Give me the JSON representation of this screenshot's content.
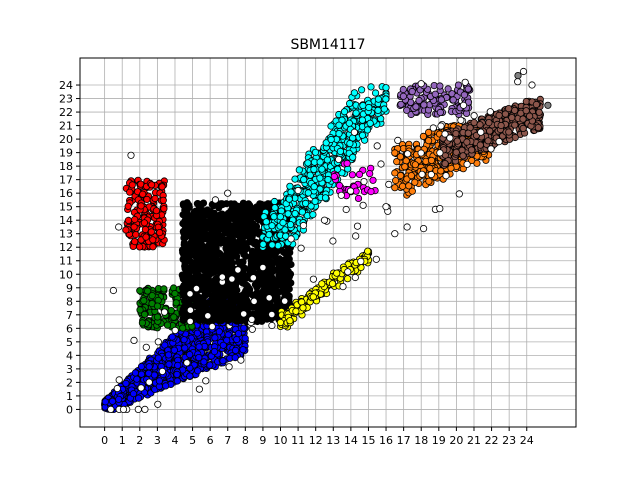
{
  "chart_data": {
    "type": "scatter",
    "title": "SBM14117",
    "xlabel": "",
    "ylabel": "",
    "xlim": [
      -1.4,
      26.8
    ],
    "ylim": [
      -1.3,
      26.0
    ],
    "xticks": [
      0,
      1,
      2,
      3,
      4,
      5,
      6,
      7,
      8,
      9,
      10,
      11,
      12,
      13,
      14,
      15,
      16,
      17,
      18,
      19,
      20,
      21,
      22,
      23,
      24
    ],
    "yticks": [
      0,
      1,
      2,
      3,
      4,
      5,
      6,
      7,
      8,
      9,
      10,
      11,
      12,
      13,
      14,
      15,
      16,
      17,
      18,
      19,
      20,
      21,
      22,
      23,
      24
    ],
    "grid": true,
    "legend": "none",
    "marker_edge_color": "#000000",
    "clusters": [
      {
        "color": "#0000ff",
        "region": "lower diagonal band",
        "x_range": [
          0,
          8
        ],
        "y_range": [
          0,
          8.5
        ]
      },
      {
        "color": "#008000",
        "region": "small block",
        "x_range": [
          2,
          5
        ],
        "y_range": [
          6,
          9
        ]
      },
      {
        "color": "#ff0000",
        "region": "left block",
        "x_range": [
          1,
          3.5
        ],
        "y_range": [
          12,
          17
        ]
      },
      {
        "color": "#000000",
        "region": "central dense block",
        "x_range": [
          4,
          11
        ],
        "y_range": [
          6,
          15.5
        ]
      },
      {
        "color": "#00ffff",
        "region": "rising arm",
        "x_range": [
          9,
          16
        ],
        "y_range": [
          12,
          24
        ]
      },
      {
        "color": "#ffff00",
        "region": "lower-right diagonal",
        "x_range": [
          10,
          15
        ],
        "y_range": [
          6,
          12
        ]
      },
      {
        "color": "#ff00ff",
        "region": "small group",
        "x_range": [
          12.5,
          16
        ],
        "y_range": [
          15,
          18.5
        ]
      },
      {
        "color": "#9467bd",
        "region": "upper cap",
        "x_range": [
          16.5,
          21
        ],
        "y_range": [
          21.5,
          24
        ]
      },
      {
        "color": "#ff7f0e",
        "region": "right block",
        "x_range": [
          16.5,
          22
        ],
        "y_range": [
          15.5,
          21
        ]
      },
      {
        "color": "#8c564b",
        "region": "upper-right block",
        "x_range": [
          19,
          25
        ],
        "y_range": [
          17.5,
          23
        ]
      },
      {
        "color": "#ffffff",
        "region": "scattered outliers",
        "x_range": [
          0,
          25
        ],
        "y_range": [
          0,
          25
        ]
      }
    ],
    "outliers": [
      {
        "x": 1.5,
        "y": 18.8,
        "color": "#ffffff"
      },
      {
        "x": 0.8,
        "y": 13.5,
        "color": "#ffffff"
      },
      {
        "x": 0.5,
        "y": 8.8,
        "color": "#ffffff"
      },
      {
        "x": 17.2,
        "y": 13.5,
        "color": "#ffffff"
      },
      {
        "x": 20.5,
        "y": 24.2,
        "color": "#ffffff"
      },
      {
        "x": 23.5,
        "y": 24.7,
        "color": "#808080"
      },
      {
        "x": 24.3,
        "y": 24.0,
        "color": "#ffffff"
      },
      {
        "x": 25.2,
        "y": 22.5,
        "color": "#808080"
      },
      {
        "x": 18.0,
        "y": 24.1,
        "color": "#ffffff"
      },
      {
        "x": 12.5,
        "y": 14.0,
        "color": "#ffffff"
      },
      {
        "x": 16.0,
        "y": 15.0,
        "color": "#ffffff"
      },
      {
        "x": 9.0,
        "y": 10.5,
        "color": "#ffffff"
      },
      {
        "x": 8.5,
        "y": 8.0,
        "color": "#ffffff"
      },
      {
        "x": 14.2,
        "y": 20.5,
        "color": "#ffffff"
      },
      {
        "x": 15.5,
        "y": 19.5,
        "color": "#ffffff"
      },
      {
        "x": 11.0,
        "y": 16.2,
        "color": "#ffffff"
      },
      {
        "x": 13.3,
        "y": 18.5,
        "color": "#ffffff"
      },
      {
        "x": 7.0,
        "y": 16.0,
        "color": "#ffffff"
      },
      {
        "x": 6.3,
        "y": 15.5,
        "color": "#ffffff"
      },
      {
        "x": 16.5,
        "y": 13.0,
        "color": "#ffffff"
      }
    ]
  }
}
